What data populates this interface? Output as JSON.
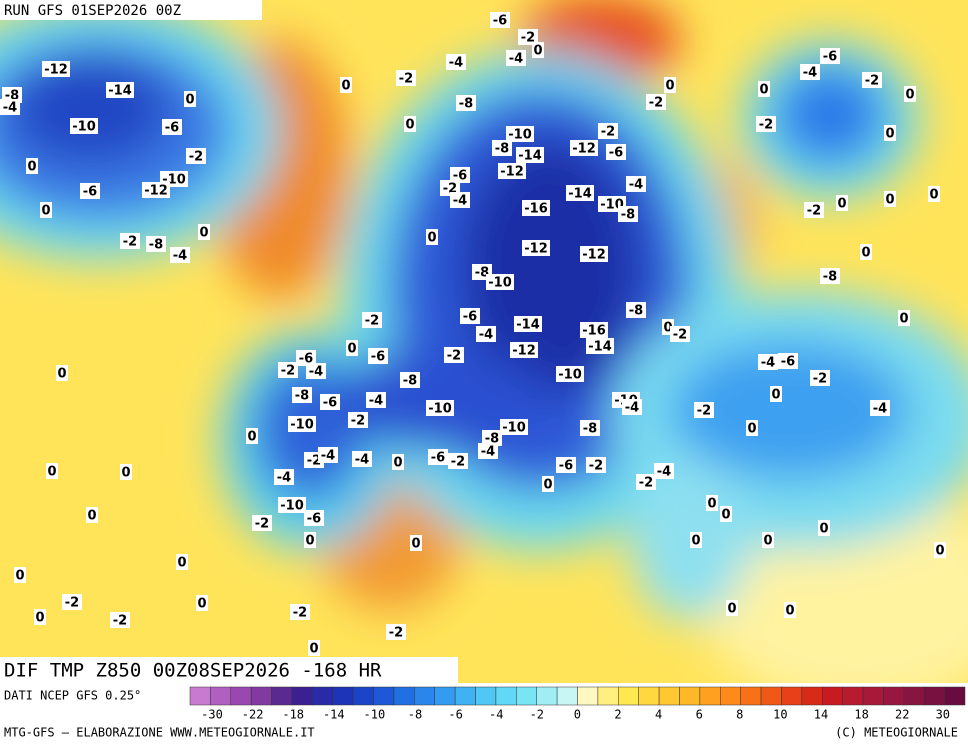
{
  "map": {
    "run_title": "RUN GFS 01SEP2026 00Z",
    "field_title": "DIF TMP Z850 00Z08SEP2026 -168 HR",
    "data_source": "DATI NCEP GFS 0.25°",
    "credit_left": "MTG-GFS — ELABORAZIONE WWW.METEOGIORNALE.IT",
    "credit_right": "(C) METEOGIORNALE",
    "colorbar_labels": [
      -30,
      -22,
      -18,
      -14,
      -10,
      -8,
      -6,
      -4,
      -2,
      0,
      2,
      4,
      6,
      8,
      10,
      14,
      18,
      22,
      30
    ],
    "contour_labels": [
      -6,
      -2,
      0,
      -4,
      -4,
      -2,
      0,
      -12,
      -14,
      0,
      -8,
      -4,
      -10,
      -6,
      -2,
      -8,
      0,
      -10,
      -2,
      -8,
      -14,
      -12,
      -6,
      -12,
      0,
      -10,
      -6,
      -12,
      -6,
      -2,
      -4,
      -14,
      -4,
      -10,
      -8,
      -16,
      0,
      0,
      -2,
      -8,
      -4,
      0,
      -12,
      -12,
      -8,
      -10,
      -6,
      -4,
      -14,
      -16,
      -14,
      -8,
      -2,
      0,
      -6,
      -2,
      -12,
      -6,
      -2,
      -4,
      0,
      -8,
      -10,
      -8,
      -6,
      -4,
      -10,
      -10,
      -4,
      -10,
      -2,
      -10,
      -8,
      0,
      -8,
      -4,
      -2,
      -4,
      -4,
      0,
      -6,
      -2,
      -6,
      -2,
      0,
      0,
      0,
      -4,
      -10,
      -6,
      -2,
      0,
      0,
      0,
      0,
      0,
      -2,
      0,
      -2,
      0,
      -2,
      -2,
      0,
      -6,
      -4,
      -2,
      0,
      0,
      0,
      -2,
      -2,
      0,
      -2,
      0,
      0,
      0,
      0,
      -8,
      0,
      0,
      -2,
      -4,
      -6,
      -2,
      0,
      -4,
      -2,
      0,
      -4,
      -2,
      0,
      0,
      0,
      0,
      0,
      0,
      0,
      0
    ]
  }
}
